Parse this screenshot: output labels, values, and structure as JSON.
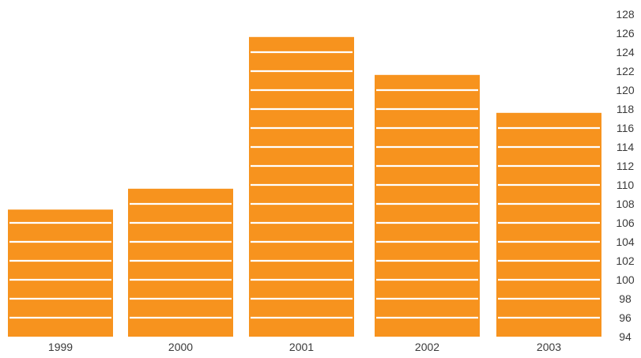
{
  "chart_data": {
    "type": "bar",
    "title": "",
    "xlabel": "",
    "ylabel": "",
    "categories": [
      "1999",
      "2000",
      "2001",
      "2002",
      "2003"
    ],
    "values": [
      107.4,
      109.6,
      125.6,
      121.6,
      117.6
    ],
    "ylim": [
      94,
      128
    ],
    "yticks": [
      94,
      96,
      98,
      100,
      102,
      104,
      106,
      108,
      110,
      112,
      114,
      116,
      118,
      120,
      122,
      124,
      126,
      128
    ],
    "y_axis_side": "right",
    "grid": false,
    "legend": "none",
    "style": "stacked bar units separated by white lines"
  },
  "colors": {
    "bar": "#F7931E",
    "separator": "#ffffff",
    "text": "#3a3a3a"
  }
}
